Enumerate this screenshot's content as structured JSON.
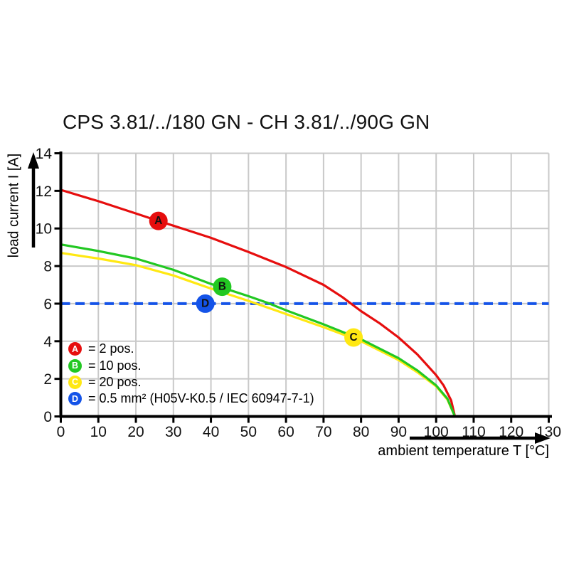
{
  "chart_data": {
    "type": "line",
    "title": "CPS 3.81/../180 GN - CH 3.81/../90G GN",
    "xlabel": "ambient temperature T [°C]",
    "ylabel": "load current I [A]",
    "xlim": [
      0,
      130
    ],
    "ylim": [
      0,
      14
    ],
    "x_ticks": [
      0,
      10,
      20,
      30,
      40,
      50,
      60,
      70,
      80,
      90,
      100,
      110,
      120,
      130
    ],
    "y_ticks": [
      0,
      2,
      4,
      6,
      8,
      10,
      12,
      14
    ],
    "grid": true,
    "legend_position": "bottom-left-inside",
    "colors": {
      "grid": "#c9c9c9",
      "axis": "#000000",
      "text": "#111111"
    },
    "series": [
      {
        "id": "A",
        "legend_label": "= 2 pos.",
        "color": "#e60e0e",
        "style": "solid",
        "marker": {
          "letter": "A",
          "x": 26,
          "y": 10.4
        },
        "points": [
          [
            0,
            12.05
          ],
          [
            10,
            11.45
          ],
          [
            20,
            10.8
          ],
          [
            26,
            10.4
          ],
          [
            30,
            10.15
          ],
          [
            40,
            9.5
          ],
          [
            50,
            8.75
          ],
          [
            60,
            7.95
          ],
          [
            70,
            7.0
          ],
          [
            75,
            6.35
          ],
          [
            80,
            5.6
          ],
          [
            85,
            4.95
          ],
          [
            90,
            4.2
          ],
          [
            95,
            3.3
          ],
          [
            100,
            2.2
          ],
          [
            102,
            1.65
          ],
          [
            104,
            0.85
          ],
          [
            105,
            0
          ]
        ]
      },
      {
        "id": "B",
        "legend_label": "= 10 pos.",
        "color": "#22c822",
        "style": "solid",
        "marker": {
          "letter": "B",
          "x": 43,
          "y": 6.9
        },
        "points": [
          [
            0,
            9.15
          ],
          [
            10,
            8.8
          ],
          [
            20,
            8.4
          ],
          [
            30,
            7.8
          ],
          [
            40,
            7.05
          ],
          [
            50,
            6.4
          ],
          [
            55,
            6.05
          ],
          [
            60,
            5.65
          ],
          [
            70,
            4.9
          ],
          [
            80,
            4.1
          ],
          [
            90,
            3.1
          ],
          [
            95,
            2.45
          ],
          [
            100,
            1.65
          ],
          [
            103,
            0.95
          ],
          [
            105,
            0
          ]
        ]
      },
      {
        "id": "C",
        "legend_label": "= 20 pos.",
        "color": "#ffe812",
        "style": "solid",
        "marker": {
          "letter": "C",
          "x": 78,
          "y": 4.2
        },
        "points": [
          [
            0,
            8.7
          ],
          [
            10,
            8.4
          ],
          [
            20,
            8.05
          ],
          [
            30,
            7.5
          ],
          [
            40,
            6.8
          ],
          [
            50,
            6.15
          ],
          [
            55,
            5.8
          ],
          [
            60,
            5.45
          ],
          [
            70,
            4.75
          ],
          [
            80,
            4.0
          ],
          [
            90,
            3.0
          ],
          [
            95,
            2.35
          ],
          [
            100,
            1.6
          ],
          [
            103,
            0.9
          ],
          [
            105,
            0
          ]
        ]
      },
      {
        "id": "D",
        "legend_label": "= 0.5 mm² (H05V-K0.5 / IEC 60947-7-1)",
        "color": "#1453e8",
        "style": "dashed",
        "marker": {
          "letter": "D",
          "x": 38.5,
          "y": 6
        },
        "points": [
          [
            0,
            6
          ],
          [
            130,
            6
          ]
        ]
      }
    ]
  }
}
